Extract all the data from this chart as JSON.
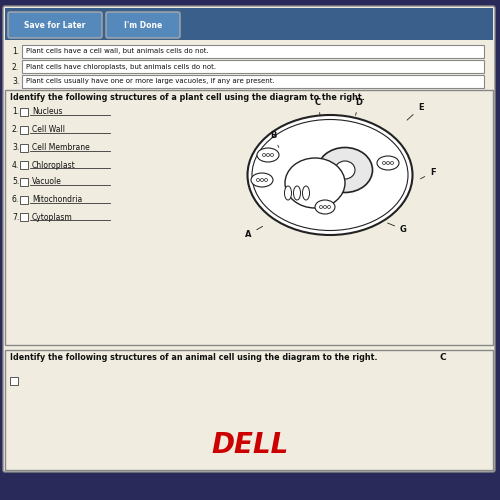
{
  "bg_color": "#2a2a5a",
  "page_bg": "#f0ede0",
  "toolbar_bg": "#3a5f8a",
  "toolbar_buttons": [
    "Save for Later",
    "I'm Done"
  ],
  "section1_items": [
    "Plant cells have a cell wall, but animals cells do not.",
    "Plant cells have chloroplasts, but animals cells do not.",
    "Plant cells usually have one or more large vacuoles, if any are present."
  ],
  "section2_title": "Identify the following structures of a plant cell using the diagram to the right.",
  "structures": [
    "Nucleus",
    "Cell Wall",
    "Cell Membrane",
    "Chloroplast",
    "Vacuole",
    "Mitochondria",
    "Cytoplasm"
  ],
  "diagram_labels": [
    "A",
    "B",
    "C",
    "D",
    "E",
    "F",
    "G"
  ],
  "section3_title": "Identify the following structures of an animal cell using the diagram to the right.",
  "dell_color": "#cc0000",
  "line_color": "#222222",
  "text_color": "#111111",
  "box_outline": "#555555"
}
